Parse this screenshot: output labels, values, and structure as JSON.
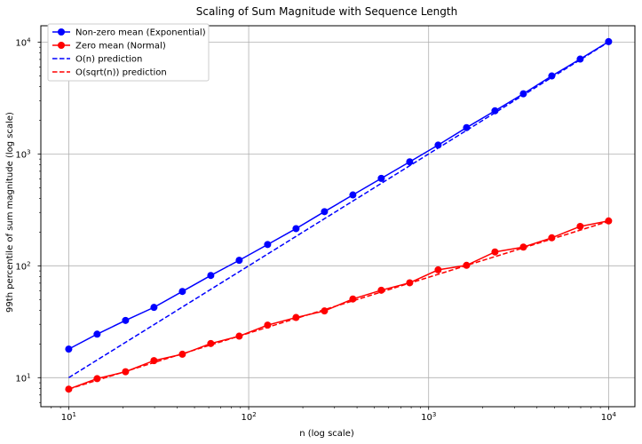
{
  "chart_data": {
    "type": "line",
    "title": "Scaling of Sum Magnitude with Sequence Length",
    "xlabel": "n (log scale)",
    "ylabel": "99th percentile of sum magnitude (log scale)",
    "x_scale": "log",
    "y_scale": "log",
    "xlim": [
      7,
      14000
    ],
    "ylim": [
      5.5,
      14000
    ],
    "grid": true,
    "legend_position": "top-left",
    "x_ticks": [
      {
        "value": 10,
        "base": "10",
        "exp": "1"
      },
      {
        "value": 100,
        "base": "10",
        "exp": "2"
      },
      {
        "value": 1000,
        "base": "10",
        "exp": "3"
      },
      {
        "value": 10000,
        "base": "10",
        "exp": "4"
      }
    ],
    "y_ticks": [
      {
        "value": 10,
        "base": "10",
        "exp": "1"
      },
      {
        "value": 100,
        "base": "10",
        "exp": "2"
      },
      {
        "value": 1000,
        "base": "10",
        "exp": "3"
      },
      {
        "value": 10000,
        "base": "10",
        "exp": "4"
      }
    ],
    "x": [
      10,
      14.38,
      20.69,
      29.76,
      42.81,
      61.58,
      88.59,
      127.4,
      183.3,
      263.7,
      379.3,
      545.6,
      784.8,
      1129,
      1624,
      2336,
      3360,
      4833,
      6952,
      10000
    ],
    "series": [
      {
        "name": "Non-zero mean (Exponential)",
        "color": "#0000ff",
        "style": "solid-marker",
        "values": [
          18,
          24.5,
          32.5,
          42.5,
          59,
          82,
          112,
          155,
          215,
          305,
          430,
          605,
          850,
          1200,
          1720,
          2430,
          3450,
          4980,
          7050,
          10100
        ]
      },
      {
        "name": "Zero mean (Normal)",
        "color": "#ff0000",
        "style": "solid-marker",
        "values": [
          7.9,
          9.8,
          11.3,
          14.2,
          16.2,
          20.2,
          23.5,
          29.5,
          34.5,
          39.5,
          50.5,
          60.5,
          70.5,
          92,
          101,
          133,
          147,
          178,
          225,
          252
        ]
      },
      {
        "name": "O(n) prediction",
        "color": "#0000ff",
        "style": "dashed",
        "values": [
          10,
          14.38,
          20.69,
          29.76,
          42.81,
          61.58,
          88.59,
          127.4,
          183.3,
          263.7,
          379.3,
          545.6,
          784.8,
          1129,
          1624,
          2336,
          3360,
          4833,
          6952,
          10000
        ]
      },
      {
        "name": "O(sqrt(n)) prediction",
        "color": "#ff0000",
        "style": "dashed",
        "values": [
          7.9,
          9.47,
          11.36,
          13.63,
          16.35,
          19.6,
          23.51,
          28.2,
          33.82,
          40.57,
          48.65,
          58.35,
          69.99,
          83.94,
          100.7,
          120.8,
          144.8,
          173.7,
          208.3,
          249.8
        ]
      }
    ]
  }
}
